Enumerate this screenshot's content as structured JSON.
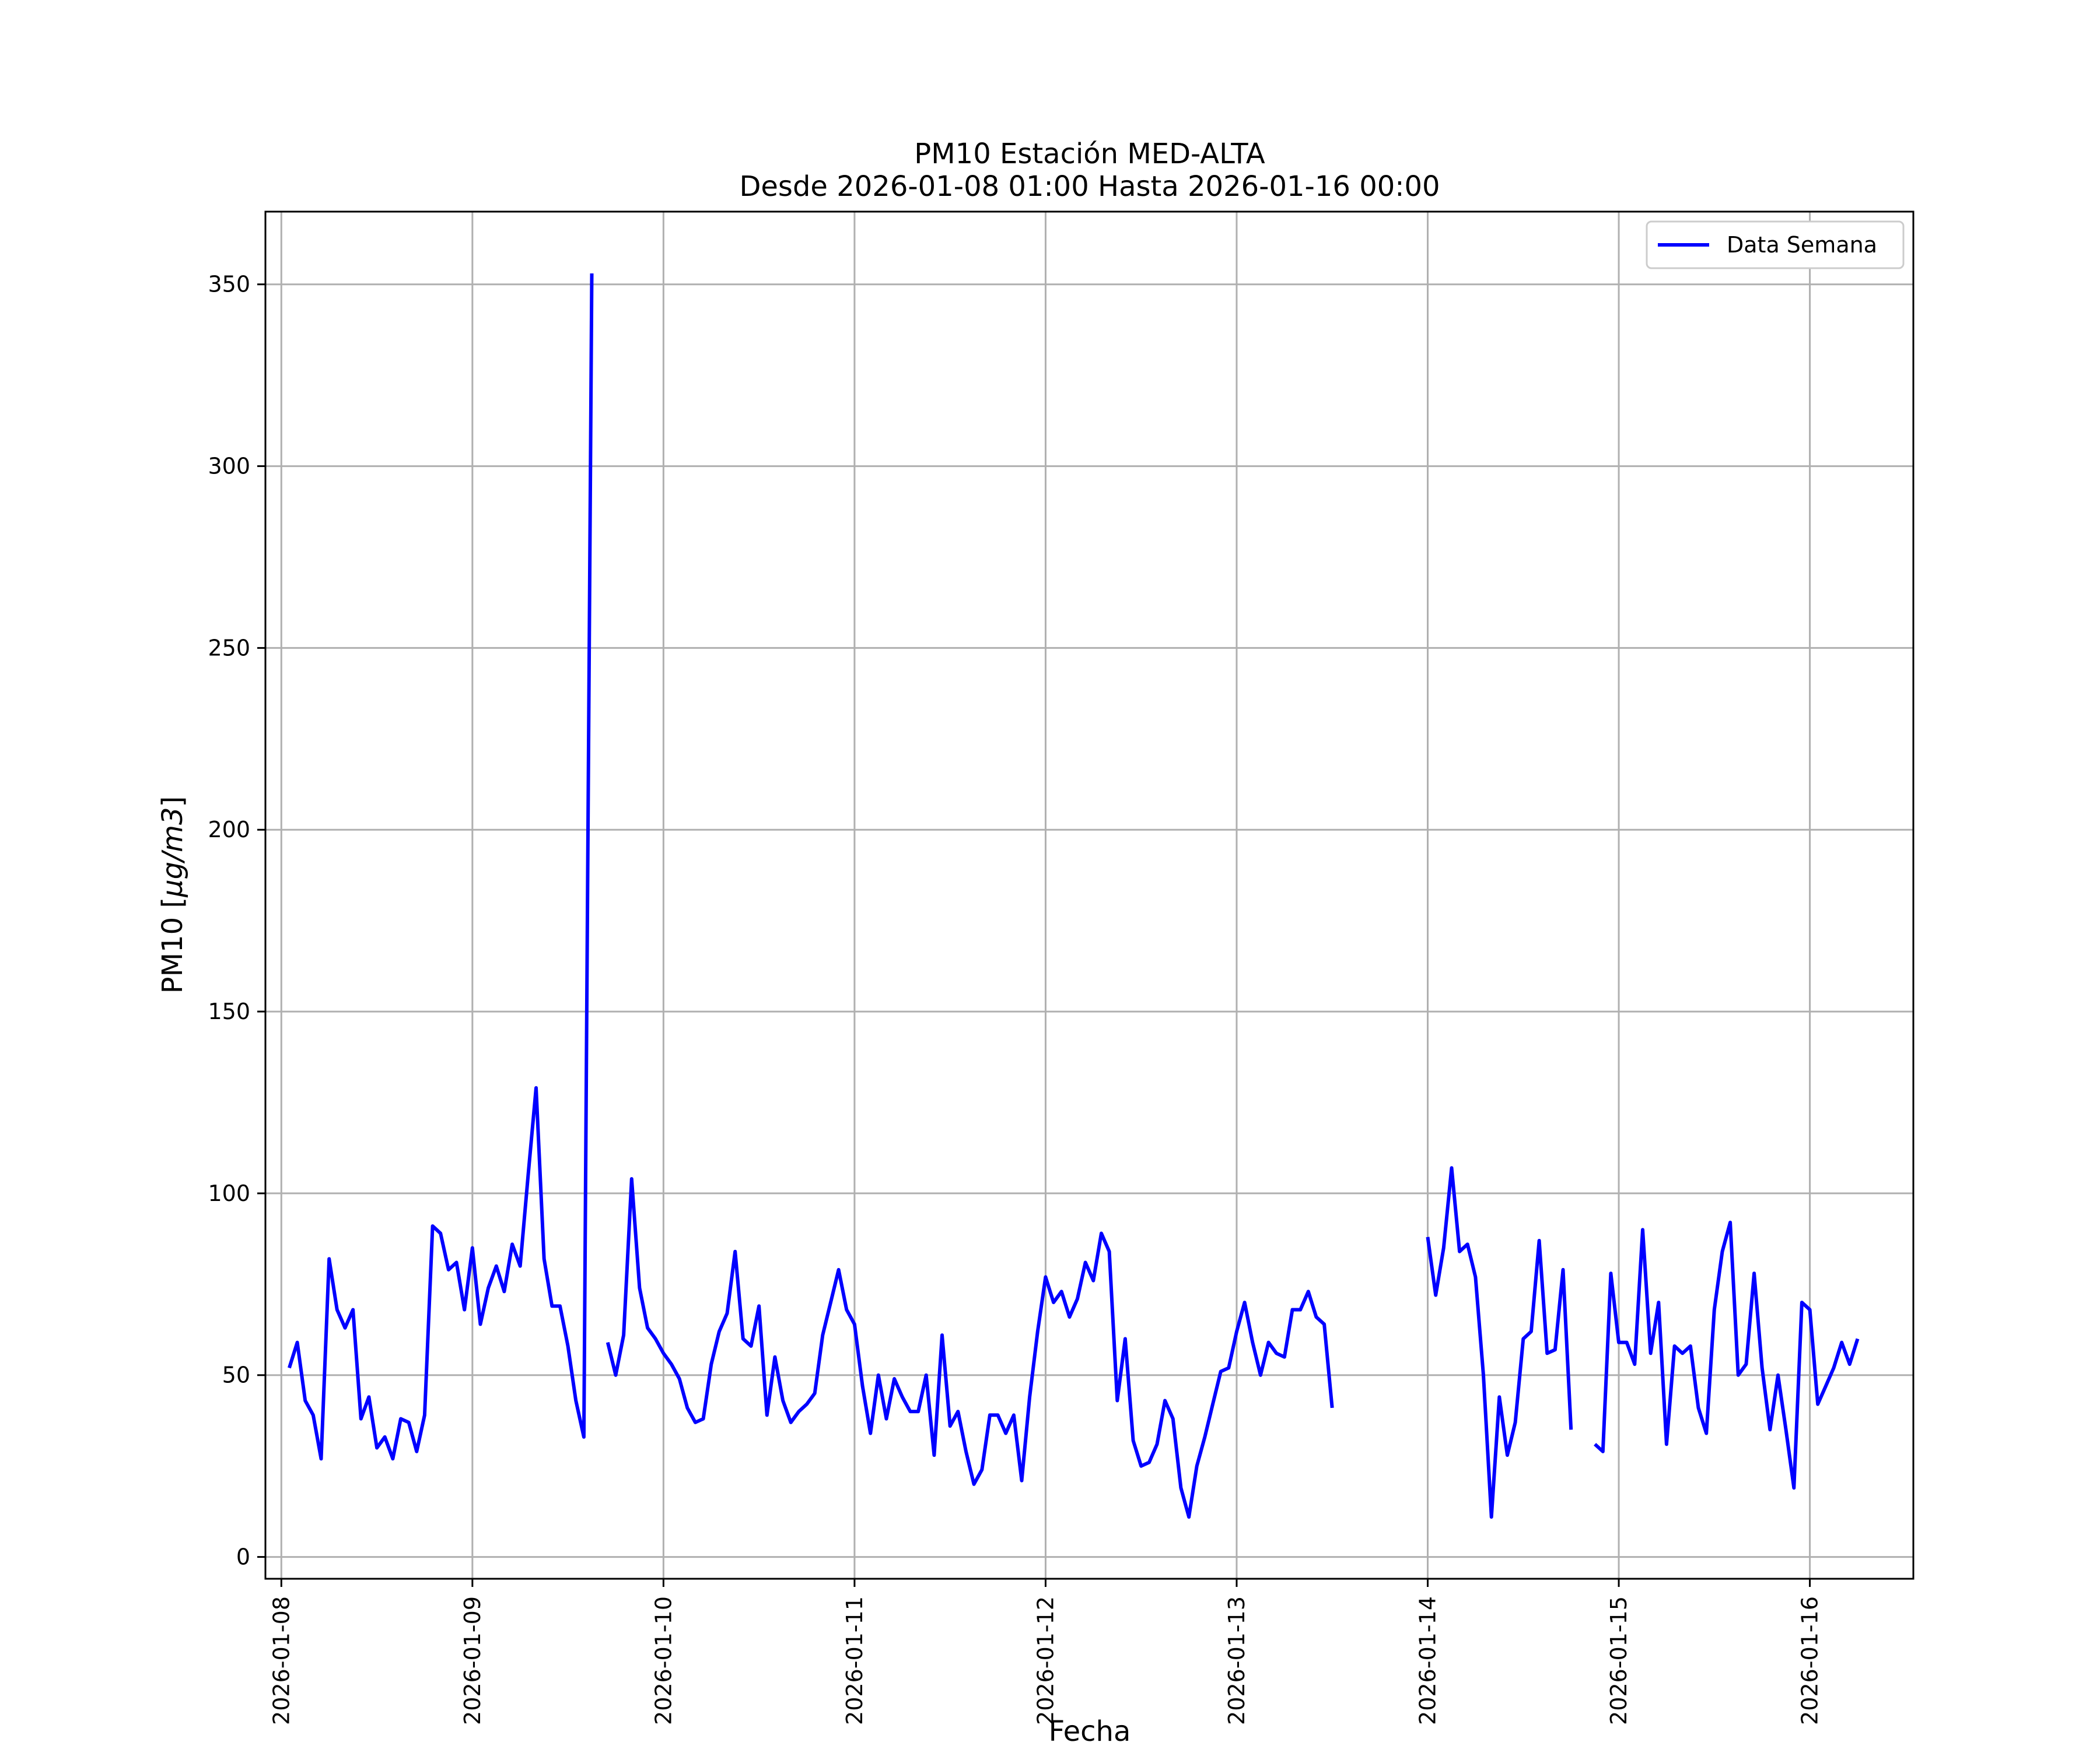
{
  "chart_data": {
    "type": "line",
    "title": "PM10 Estación MED-ALTA",
    "subtitle": "Desde 2026-01-08 01:00 Hasta 2026-01-16 00:00",
    "xlabel": "Fecha",
    "ylabel_prefix": "PM10 [",
    "ylabel_unit": "μg/m3",
    "ylabel_suffix": "]",
    "x_type": "time",
    "xlim": [
      "2026-01-07T22:00",
      "2026-01-16T13:00"
    ],
    "ylim": [
      -6,
      370
    ],
    "x_ticks": [
      "2026-01-08",
      "2026-01-09",
      "2026-01-10",
      "2026-01-11",
      "2026-01-12",
      "2026-01-13",
      "2026-01-14",
      "2026-01-15",
      "2026-01-16"
    ],
    "y_ticks": [
      0,
      50,
      100,
      150,
      200,
      250,
      300,
      350
    ],
    "grid": true,
    "legend_position": "top-right",
    "colors": {
      "series": "#0000ff",
      "grid": "#b0b0b0",
      "axis": "#000000"
    },
    "series": [
      {
        "name": "Data Semana",
        "start": "2026-01-08T01:00",
        "step_hours": 1,
        "values": [
          52,
          59,
          43,
          39,
          27,
          82,
          68,
          63,
          68,
          38,
          44,
          30,
          33,
          27,
          38,
          37,
          29,
          39,
          91,
          89,
          79,
          81,
          68,
          85,
          64,
          74,
          80,
          73,
          86,
          80,
          105,
          129,
          82,
          69,
          69,
          58,
          43,
          33,
          353,
          null,
          59,
          50,
          61,
          104,
          74,
          63,
          60,
          56,
          53,
          49,
          41,
          37,
          38,
          53,
          62,
          67,
          84,
          60,
          58,
          69,
          39,
          55,
          43,
          37,
          40,
          42,
          45,
          61,
          70,
          79,
          68,
          64,
          47,
          34,
          50,
          38,
          49,
          44,
          40,
          40,
          50,
          28,
          61,
          36,
          40,
          29,
          20,
          24,
          39,
          39,
          34,
          39,
          21,
          44,
          62,
          77,
          70,
          73,
          66,
          71,
          81,
          76,
          89,
          84,
          43,
          60,
          32,
          25,
          26,
          31,
          43,
          38,
          19,
          11,
          25,
          33,
          42,
          51,
          52,
          62,
          70,
          59,
          50,
          59,
          56,
          55,
          68,
          68,
          73,
          66,
          64,
          41,
          null,
          null,
          null,
          null,
          null,
          null,
          null,
          null,
          null,
          null,
          null,
          88,
          72,
          85,
          107,
          84,
          86,
          77,
          50,
          11,
          44,
          28,
          37,
          60,
          62,
          87,
          56,
          57,
          79,
          35,
          null,
          null,
          31,
          29,
          78,
          59,
          59,
          53,
          90,
          56,
          70,
          31,
          58,
          56,
          58,
          41,
          34,
          68,
          84,
          92,
          50,
          53,
          78,
          52,
          35,
          50,
          35,
          19,
          70,
          68,
          42,
          47,
          52,
          59,
          53,
          60
        ]
      }
    ]
  },
  "legend": {
    "label": "Data Semana"
  }
}
